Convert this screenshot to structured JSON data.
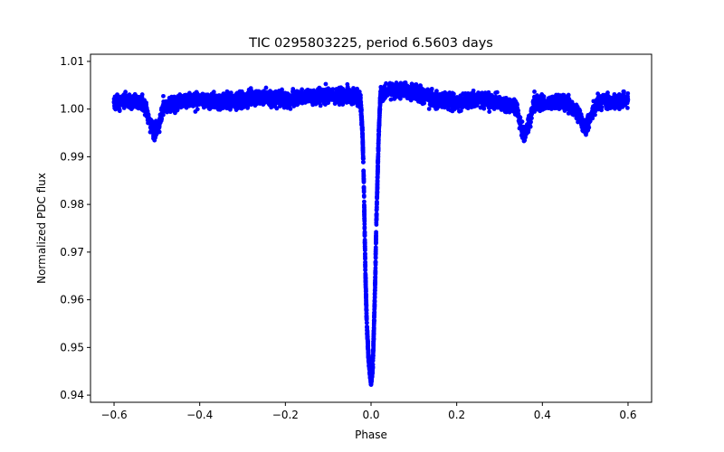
{
  "chart_data": {
    "type": "scatter",
    "title": "TIC 0295803225, period 6.5603 days",
    "xlabel": "Phase",
    "ylabel": "Normalized PDC flux",
    "xlim": [
      -0.655,
      0.655
    ],
    "ylim": [
      0.9385,
      1.0115
    ],
    "x_ticks": [
      -0.6,
      -0.4,
      -0.2,
      0.0,
      0.2,
      0.4,
      0.6
    ],
    "x_tick_labels": [
      "−0.6",
      "−0.4",
      "−0.2",
      "0.0",
      "0.2",
      "0.4",
      "0.6"
    ],
    "y_ticks": [
      0.94,
      0.95,
      0.96,
      0.97,
      0.98,
      0.99,
      1.0,
      1.01
    ],
    "y_tick_labels": [
      "0.94",
      "0.95",
      "0.96",
      "0.97",
      "0.98",
      "0.99",
      "1.00",
      "1.01"
    ],
    "grid": false,
    "legend": "none",
    "marker_color": "#0000ff",
    "series": [
      {
        "description_points": [
          [
            -0.6,
            1.0015
          ],
          [
            -0.58,
            1.002
          ],
          [
            -0.55,
            1.0015
          ],
          [
            -0.53,
            1.001
          ],
          [
            -0.515,
            0.997
          ],
          [
            -0.505,
            0.995
          ],
          [
            -0.495,
            0.9965
          ],
          [
            -0.485,
            1.0005
          ],
          [
            -0.45,
            1.0015
          ],
          [
            -0.4,
            1.002
          ],
          [
            -0.35,
            1.0015
          ],
          [
            -0.3,
            1.002
          ],
          [
            -0.25,
            1.0025
          ],
          [
            -0.2,
            1.002
          ],
          [
            -0.15,
            1.0025
          ],
          [
            -0.1,
            1.003
          ],
          [
            -0.07,
            1.003
          ],
          [
            -0.04,
            1.003
          ],
          [
            -0.025,
            1.002
          ],
          [
            -0.02,
            0.995
          ],
          [
            -0.017,
            0.985
          ],
          [
            -0.015,
            0.975
          ],
          [
            -0.013,
            0.965
          ],
          [
            -0.01,
            0.955
          ],
          [
            -0.006,
            0.948
          ],
          [
            0.0,
            0.9425
          ],
          [
            0.004,
            0.946
          ],
          [
            0.007,
            0.955
          ],
          [
            0.01,
            0.965
          ],
          [
            0.012,
            0.975
          ],
          [
            0.015,
            0.985
          ],
          [
            0.018,
            0.995
          ],
          [
            0.022,
            1.003
          ],
          [
            0.04,
            1.004
          ],
          [
            0.08,
            1.004
          ],
          [
            0.12,
            1.003
          ],
          [
            0.15,
            1.002
          ],
          [
            0.2,
            1.0015
          ],
          [
            0.25,
            1.002
          ],
          [
            0.3,
            1.0015
          ],
          [
            0.34,
            1.0005
          ],
          [
            0.35,
            0.996
          ],
          [
            0.36,
            0.9945
          ],
          [
            0.37,
            0.9975
          ],
          [
            0.38,
            1.001
          ],
          [
            0.42,
            1.0015
          ],
          [
            0.46,
            1.0015
          ],
          [
            0.49,
            0.998
          ],
          [
            0.5,
            0.996
          ],
          [
            0.51,
            0.998
          ],
          [
            0.53,
            1.0015
          ],
          [
            0.57,
            1.0015
          ],
          [
            0.6,
            1.002
          ]
        ]
      }
    ]
  }
}
